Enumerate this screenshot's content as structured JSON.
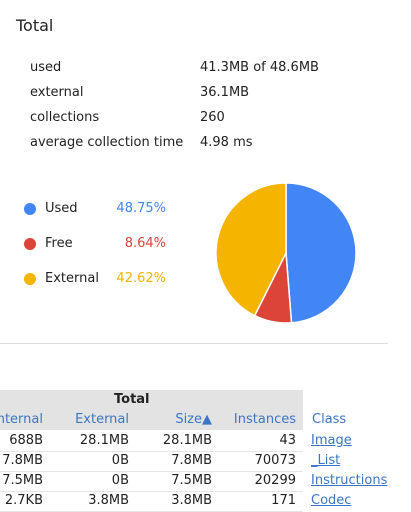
{
  "header": {
    "title": "Total"
  },
  "stats": [
    {
      "label": "used",
      "value": "41.3MB of 48.6MB"
    },
    {
      "label": "external",
      "value": "36.1MB"
    },
    {
      "label": "collections",
      "value": "260"
    },
    {
      "label": "average collection time",
      "value": "4.98 ms"
    }
  ],
  "pie": {
    "slices": [
      {
        "name": "Used",
        "value": 48.75,
        "label": "48.75%",
        "color": "#4285f4"
      },
      {
        "name": "Free",
        "value": 8.64,
        "label": "8.64%",
        "color": "#db4437"
      },
      {
        "name": "External",
        "value": 42.62,
        "label": "42.62%",
        "color": "#f4b400"
      }
    ]
  },
  "table": {
    "group_header": "Total",
    "columns": [
      "nternal",
      "External",
      "Size▲",
      "Instances",
      "Class"
    ],
    "rows": [
      [
        "688B",
        "28.1MB",
        "28.1MB",
        "43",
        "Image"
      ],
      [
        "7.8MB",
        "0B",
        "7.8MB",
        "70073",
        "_List"
      ],
      [
        "7.5MB",
        "0B",
        "7.5MB",
        "20299",
        "Instructions"
      ],
      [
        "2.7KB",
        "3.8MB",
        "3.8MB",
        "171",
        "Codec"
      ]
    ]
  }
}
